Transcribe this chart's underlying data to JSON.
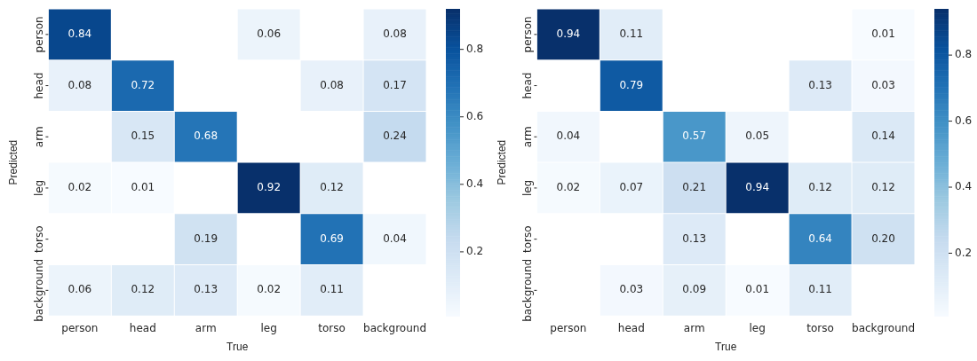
{
  "chart_data": [
    {
      "type": "heatmap",
      "xlabel": "True",
      "ylabel": "Predicted",
      "categories": [
        "person",
        "head",
        "arm",
        "leg",
        "torso",
        "background"
      ],
      "y_categories": [
        "person",
        "head",
        "arm",
        "leg",
        "torso",
        "background"
      ],
      "cells": [
        [
          0.84,
          null,
          null,
          0.06,
          null,
          0.08
        ],
        [
          0.08,
          0.72,
          null,
          null,
          0.08,
          0.17
        ],
        [
          null,
          0.15,
          0.68,
          null,
          null,
          0.24
        ],
        [
          0.02,
          0.01,
          null,
          0.92,
          0.12,
          null
        ],
        [
          null,
          null,
          0.19,
          null,
          0.69,
          0.04
        ],
        [
          0.06,
          0.12,
          0.13,
          0.02,
          0.11,
          null
        ]
      ],
      "clim": [
        0.01,
        0.92
      ],
      "cticks": [
        0.2,
        0.4,
        0.6,
        0.8
      ],
      "data_labels": true
    },
    {
      "type": "heatmap",
      "xlabel": "True",
      "ylabel": "Predicted",
      "categories": [
        "person",
        "head",
        "arm",
        "leg",
        "torso",
        "background"
      ],
      "y_categories": [
        "person",
        "head",
        "arm",
        "leg",
        "torso",
        "background"
      ],
      "cells": [
        [
          0.94,
          0.11,
          null,
          null,
          null,
          0.01
        ],
        [
          null,
          0.79,
          null,
          null,
          0.13,
          0.03
        ],
        [
          0.04,
          null,
          0.57,
          0.05,
          null,
          0.14
        ],
        [
          0.02,
          0.07,
          0.21,
          0.94,
          0.12,
          0.12
        ],
        [
          null,
          null,
          0.13,
          null,
          0.64,
          0.2
        ],
        [
          null,
          0.03,
          0.09,
          0.01,
          0.11,
          null
        ]
      ],
      "cell_labels": [
        [
          "0.94",
          "0.11",
          null,
          null,
          null,
          "0.01"
        ],
        [
          null,
          "0.79",
          null,
          null,
          "0.13",
          "0.03"
        ],
        [
          "0.04",
          null,
          "0.57",
          "0.05",
          null,
          "0.14"
        ],
        [
          "0.02",
          "0.07",
          "0.21",
          "0.94",
          "0.12",
          "0.12"
        ],
        [
          null,
          null,
          "0.13",
          null,
          "0.64",
          "0.20"
        ],
        [
          null,
          "0.03",
          "0.09",
          "0.01",
          "0.11",
          null
        ]
      ],
      "clim": [
        0.01,
        0.94
      ],
      "cticks": [
        0.2,
        0.4,
        0.6,
        0.8
      ],
      "data_labels": true
    }
  ]
}
